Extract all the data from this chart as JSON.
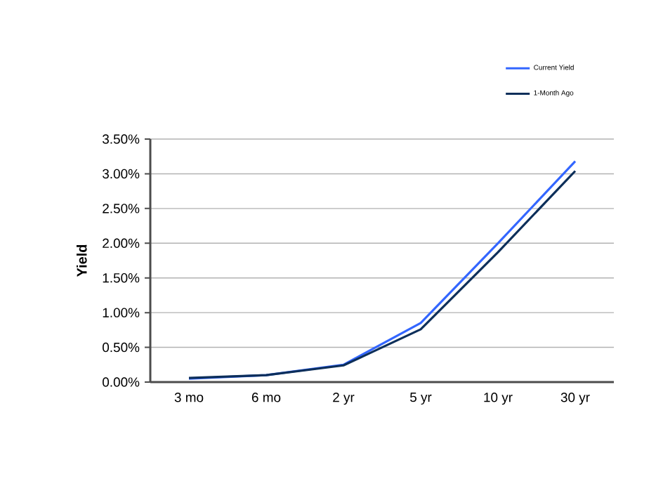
{
  "chart_data": {
    "type": "line",
    "ylabel": "Yield",
    "categories": [
      "3 mo",
      "6 mo",
      "2 yr",
      "5 yr",
      "10 yr",
      "30 yr"
    ],
    "series": [
      {
        "name": "Current Yield",
        "color": "#3366ff",
        "values": [
          0.05,
          0.1,
          0.25,
          0.85,
          2.0,
          3.18
        ]
      },
      {
        "name": "1-Month Ago",
        "color": "#0d2f5a",
        "values": [
          0.06,
          0.1,
          0.24,
          0.76,
          1.87,
          3.04
        ]
      }
    ],
    "ylim": [
      0,
      3.5
    ],
    "yticks": [
      {
        "value": 0,
        "label": "0.00%"
      },
      {
        "value": 0.5,
        "label": "0.50%"
      },
      {
        "value": 1,
        "label": "1.00%"
      },
      {
        "value": 1.5,
        "label": "1.50%"
      },
      {
        "value": 2,
        "label": "2.00%"
      },
      {
        "value": 2.5,
        "label": "2.50%"
      },
      {
        "value": 3,
        "label": "3.00%"
      },
      {
        "value": 3.5,
        "label": "3.50%"
      }
    ],
    "grid": "y",
    "legend": "top right",
    "marker": "none",
    "line_style": "solid"
  }
}
